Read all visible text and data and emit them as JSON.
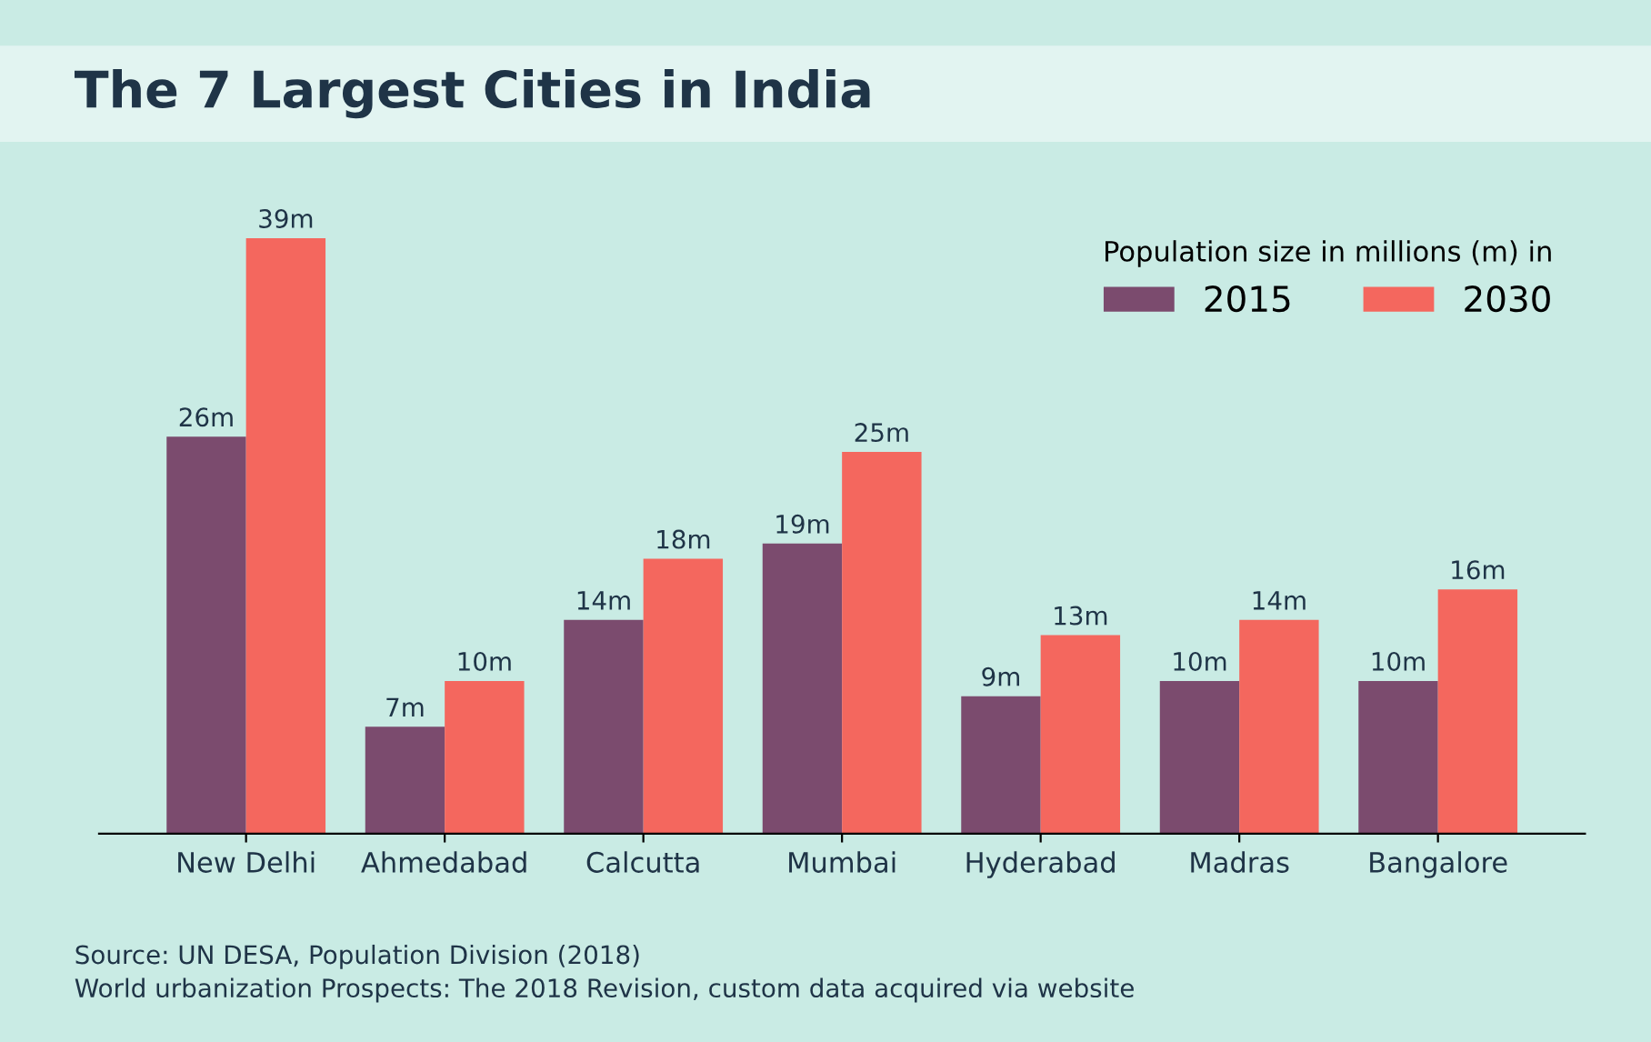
{
  "chart_data": {
    "type": "bar",
    "title": "The 7 Largest Cities in India",
    "categories": [
      "New Delhi",
      "Ahmedabad",
      "Calcutta",
      "Mumbai",
      "Hyderabad",
      "Madras",
      "Bangalore"
    ],
    "series": [
      {
        "name": "2015",
        "color": "#7b4b6e",
        "values": [
          26,
          7,
          14,
          19,
          9,
          10,
          10
        ],
        "value_labels": [
          "26m",
          "7m",
          "14m",
          "19m",
          "9m",
          "10m",
          "10m"
        ]
      },
      {
        "name": "2030",
        "color": "#f4675e",
        "values": [
          39,
          10,
          18,
          25,
          13,
          14,
          16
        ],
        "value_labels": [
          "39m",
          "10m",
          "18m",
          "25m",
          "13m",
          "14m",
          "16m"
        ]
      }
    ],
    "legend": "top right",
    "legend_title": "Population size in millions (m) in",
    "tick_labels": "x",
    "grid": false,
    "annotations": [
      "Source: UN DESA, Population Division (2018)",
      "World urbanization Prospects: The 2018 Revision, custom data acquired via website"
    ]
  }
}
